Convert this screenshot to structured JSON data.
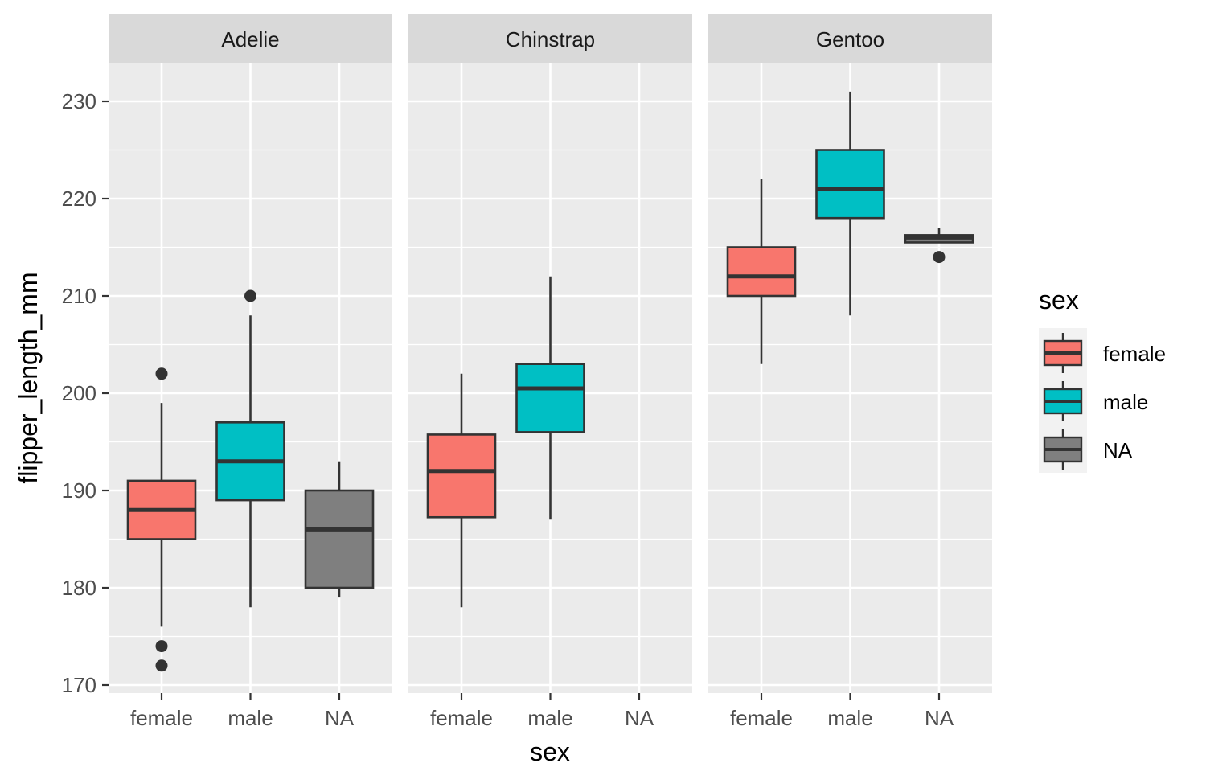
{
  "chart_data": {
    "type": "boxplot",
    "facets": [
      "Adelie",
      "Chinstrap",
      "Gentoo"
    ],
    "categories": [
      "female",
      "male",
      "NA"
    ],
    "xlabel": "sex",
    "ylabel": "flipper_length_mm",
    "ylim": [
      169,
      235
    ],
    "yticks": [
      170,
      180,
      190,
      200,
      210,
      220,
      230
    ],
    "legend": {
      "title": "sex",
      "entries": [
        "female",
        "male",
        "NA"
      ],
      "position": "right"
    },
    "colors": {
      "female": "#F8766D",
      "male": "#00BFC4",
      "NA": "#7F7F7F",
      "panel_bg": "#EBEBEB",
      "strip_bg": "#D9D9D9",
      "grid": "#FFFFFF"
    },
    "boxes": [
      {
        "facet": "Adelie",
        "category": "female",
        "whisker_low": 176,
        "q1": 185,
        "median": 188,
        "q3": 191,
        "whisker_high": 199,
        "outliers": [
          202,
          174,
          172
        ]
      },
      {
        "facet": "Adelie",
        "category": "male",
        "whisker_low": 178,
        "q1": 189,
        "median": 193,
        "q3": 197,
        "whisker_high": 208,
        "outliers": [
          210
        ]
      },
      {
        "facet": "Adelie",
        "category": "NA",
        "whisker_low": 179,
        "q1": 180,
        "median": 186,
        "q3": 190,
        "whisker_high": 193,
        "outliers": []
      },
      {
        "facet": "Chinstrap",
        "category": "female",
        "whisker_low": 178,
        "q1": 187.25,
        "median": 192,
        "q3": 195.75,
        "whisker_high": 202,
        "outliers": []
      },
      {
        "facet": "Chinstrap",
        "category": "male",
        "whisker_low": 187,
        "q1": 196,
        "median": 200.5,
        "q3": 203,
        "whisker_high": 212,
        "outliers": []
      },
      {
        "facet": "Gentoo",
        "category": "female",
        "whisker_low": 203,
        "q1": 210,
        "median": 212,
        "q3": 215,
        "whisker_high": 222,
        "outliers": []
      },
      {
        "facet": "Gentoo",
        "category": "male",
        "whisker_low": 208,
        "q1": 218,
        "median": 221,
        "q3": 225,
        "whisker_high": 231,
        "outliers": []
      },
      {
        "facet": "Gentoo",
        "category": "NA",
        "whisker_low": 215.5,
        "q1": 215.5,
        "median": 216,
        "q3": 216.25,
        "whisker_high": 217,
        "outliers": [
          214
        ]
      }
    ]
  }
}
